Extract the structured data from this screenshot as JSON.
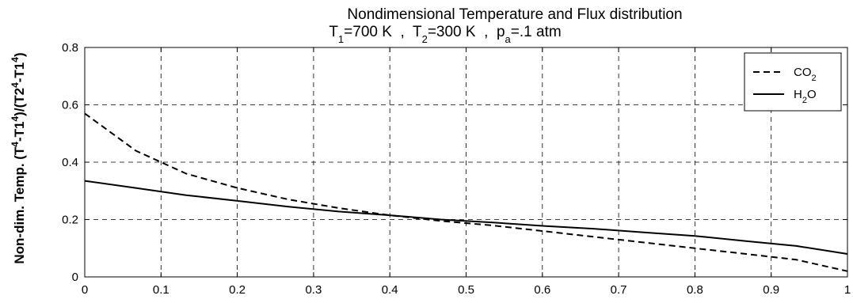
{
  "chart_data": {
    "type": "line",
    "title": "Nondimensional Temperature and Flux distribution",
    "subtitle": {
      "t1_main": "T",
      "t1_sub": "1",
      "t1_rest": "=700 K  ,  ",
      "t2_main": "T",
      "t2_sub": "2",
      "t2_rest": "=300 K  ,  ",
      "pa_main": "p",
      "pa_sub": "a",
      "pa_rest": "=.1 atm"
    },
    "ylabel": {
      "p1": "Non-dim. Temp. (T",
      "s1": "4",
      "p2": "-T1",
      "s2": "4",
      "p3": ")/(T2",
      "s3": "4",
      "p4": "-T1",
      "s4": "4",
      "p5": ")"
    },
    "xlabel": "",
    "xlim": [
      0,
      1
    ],
    "ylim": [
      0,
      0.8
    ],
    "xticks": [
      0,
      0.1,
      0.2,
      0.3,
      0.4,
      0.5,
      0.6,
      0.7,
      0.8,
      0.9,
      1
    ],
    "xtick_labels": [
      "0",
      "0.1",
      "0.2",
      "0.3",
      "0.4",
      "0.5",
      "0.6",
      "0.7",
      "0.8",
      "0.9",
      "1"
    ],
    "yticks": [
      0,
      0.2,
      0.4,
      0.6,
      0.8
    ],
    "ytick_labels": [
      "0",
      "0.2",
      "0.4",
      "0.6",
      "0.8"
    ],
    "grid": true,
    "legend_position": "top-right",
    "series": [
      {
        "name_main": "CO",
        "name_sub": "2",
        "name_tail": "",
        "style": "dashed",
        "color": "#000000",
        "x": [
          0,
          0.067,
          0.133,
          0.2,
          0.267,
          0.333,
          0.4,
          0.467,
          0.533,
          0.6,
          0.667,
          0.733,
          0.8,
          0.867,
          0.933,
          1
        ],
        "y": [
          0.57,
          0.44,
          0.36,
          0.31,
          0.27,
          0.24,
          0.215,
          0.195,
          0.18,
          0.16,
          0.14,
          0.12,
          0.1,
          0.08,
          0.06,
          0.02
        ]
      },
      {
        "name_main": "H",
        "name_sub": "2",
        "name_tail": "O",
        "style": "solid",
        "color": "#000000",
        "x": [
          0,
          0.067,
          0.133,
          0.2,
          0.267,
          0.333,
          0.4,
          0.467,
          0.533,
          0.6,
          0.667,
          0.733,
          0.8,
          0.867,
          0.933,
          1
        ],
        "y": [
          0.335,
          0.31,
          0.285,
          0.265,
          0.245,
          0.228,
          0.215,
          0.2,
          0.19,
          0.178,
          0.168,
          0.155,
          0.143,
          0.125,
          0.108,
          0.08
        ]
      }
    ]
  }
}
